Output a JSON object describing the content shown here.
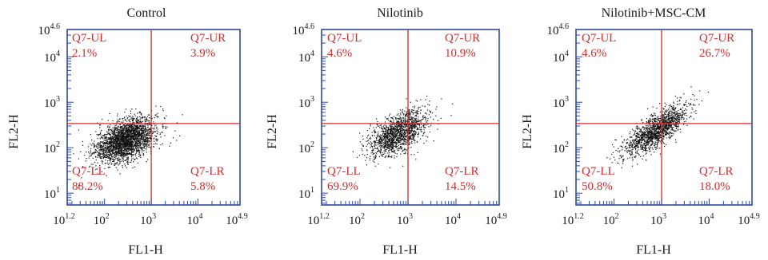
{
  "colors": {
    "frame": "#2f47a0",
    "quadrant": "#d42a2a",
    "dots": "#111111",
    "text": "#1a1a1a"
  },
  "chart_data": [
    {
      "type": "scatter",
      "title": "Control",
      "xlabel": "FL1-H",
      "ylabel": "FL2-H",
      "x_scale": "log",
      "y_scale": "log",
      "xlim": [
        15.85,
        79433
      ],
      "ylim": [
        5.5,
        39811
      ],
      "x_ticks": [
        {
          "base": "10",
          "exp": "1.2"
        },
        {
          "base": "10",
          "exp": "2"
        },
        {
          "base": "10",
          "exp": "3"
        },
        {
          "base": "10",
          "exp": "4"
        },
        {
          "base": "10",
          "exp": "4.9"
        }
      ],
      "y_ticks": [
        {
          "base": "10",
          "exp": "1"
        },
        {
          "base": "10",
          "exp": "2"
        },
        {
          "base": "10",
          "exp": "3"
        },
        {
          "base": "10",
          "exp": "4"
        },
        {
          "base": "10",
          "exp": "4.6"
        }
      ],
      "quadrant_gate": {
        "x": 1000,
        "y": 340
      },
      "quadrants": [
        {
          "name": "Q7-UL",
          "percent": "2.1%",
          "position": "top-left"
        },
        {
          "name": "Q7-UR",
          "percent": "3.9%",
          "position": "top-right"
        },
        {
          "name": "Q7-LL",
          "percent": "88.2%",
          "position": "bottom-left"
        },
        {
          "name": "Q7-LR",
          "percent": "5.8%",
          "position": "bottom-right"
        }
      ],
      "population": {
        "center_x": 280,
        "center_y": 150,
        "spread_x_log10": 0.32,
        "spread_y_log10": 0.24,
        "correlation": 0.45,
        "n_points": 2600
      }
    },
    {
      "type": "scatter",
      "title": "Nilotinib",
      "xlabel": "FL1-H",
      "ylabel": "FL2-H",
      "x_scale": "log",
      "y_scale": "log",
      "xlim": [
        15.85,
        79433
      ],
      "ylim": [
        5.5,
        39811
      ],
      "x_ticks": [
        {
          "base": "10",
          "exp": "1.2"
        },
        {
          "base": "10",
          "exp": "2"
        },
        {
          "base": "10",
          "exp": "3"
        },
        {
          "base": "10",
          "exp": "4"
        },
        {
          "base": "10",
          "exp": "4.9"
        }
      ],
      "y_ticks": [
        {
          "base": "10",
          "exp": "1"
        },
        {
          "base": "10",
          "exp": "2"
        },
        {
          "base": "10",
          "exp": "3"
        },
        {
          "base": "10",
          "exp": "4"
        },
        {
          "base": "10",
          "exp": "4.6"
        }
      ],
      "quadrant_gate": {
        "x": 1000,
        "y": 340
      },
      "quadrants": [
        {
          "name": "Q7-UL",
          "percent": "4.6%",
          "position": "top-left"
        },
        {
          "name": "Q7-UR",
          "percent": "10.9%",
          "position": "top-right"
        },
        {
          "name": "Q7-LL",
          "percent": "69.9%",
          "position": "bottom-left"
        },
        {
          "name": "Q7-LR",
          "percent": "14.5%",
          "position": "bottom-right"
        }
      ],
      "population": {
        "center_x": 600,
        "center_y": 210,
        "spread_x_log10": 0.3,
        "spread_y_log10": 0.25,
        "correlation": 0.55,
        "n_points": 1500
      }
    },
    {
      "type": "scatter",
      "title": "Nilotinib+MSC-CM",
      "xlabel": "FL1-H",
      "ylabel": "FL2-H",
      "x_scale": "log",
      "y_scale": "log",
      "xlim": [
        15.85,
        79433
      ],
      "ylim": [
        5.5,
        39811
      ],
      "x_ticks": [
        {
          "base": "10",
          "exp": "1.2"
        },
        {
          "base": "10",
          "exp": "2"
        },
        {
          "base": "10",
          "exp": "3"
        },
        {
          "base": "10",
          "exp": "4"
        },
        {
          "base": "10",
          "exp": "4.9"
        }
      ],
      "y_ticks": [
        {
          "base": "10",
          "exp": "1"
        },
        {
          "base": "10",
          "exp": "2"
        },
        {
          "base": "10",
          "exp": "3"
        },
        {
          "base": "10",
          "exp": "4"
        },
        {
          "base": "10",
          "exp": "4.6"
        }
      ],
      "quadrant_gate": {
        "x": 1000,
        "y": 340
      },
      "quadrants": [
        {
          "name": "Q7-UL",
          "percent": "4.6%",
          "position": "top-left"
        },
        {
          "name": "Q7-UR",
          "percent": "26.7%",
          "position": "top-right"
        },
        {
          "name": "Q7-LL",
          "percent": "50.8%",
          "position": "bottom-left"
        },
        {
          "name": "Q7-LR",
          "percent": "18.0%",
          "position": "bottom-right"
        }
      ],
      "population": {
        "center_x": 750,
        "center_y": 240,
        "spread_x_log10": 0.33,
        "spread_y_log10": 0.28,
        "correlation": 0.78,
        "n_points": 1500
      }
    }
  ]
}
